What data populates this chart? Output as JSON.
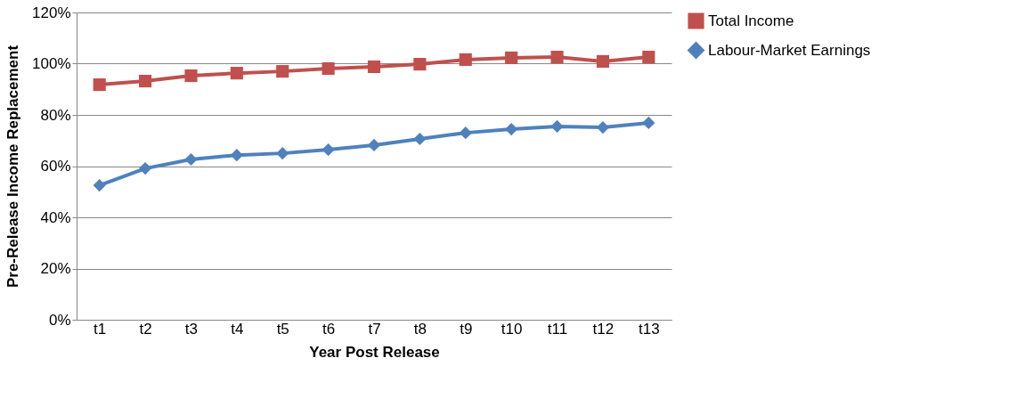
{
  "chart_data": {
    "type": "line",
    "xlabel": "Year Post Release",
    "ylabel": "Pre-Release Income Replacement",
    "categories": [
      "t1",
      "t2",
      "t3",
      "t4",
      "t5",
      "t6",
      "t7",
      "t8",
      "t9",
      "t10",
      "t11",
      "t12",
      "t13"
    ],
    "series": [
      {
        "name": "Total Income",
        "color": "#c0504d",
        "marker": "square",
        "values": [
          91.8,
          93.2,
          95.3,
          96.3,
          97.0,
          98.1,
          98.8,
          99.8,
          101.6,
          102.3,
          102.6,
          100.9,
          102.6
        ]
      },
      {
        "name": "Labour-Market Earnings",
        "color": "#4f81bd",
        "marker": "diamond",
        "values": [
          52.5,
          59.1,
          62.6,
          64.3,
          65.0,
          66.4,
          68.2,
          70.6,
          73.0,
          74.4,
          75.5,
          75.1,
          76.9
        ]
      }
    ],
    "ylim": [
      0,
      120
    ],
    "yticks": [
      {
        "value": 0,
        "label": "0%"
      },
      {
        "value": 20,
        "label": "20%"
      },
      {
        "value": 40,
        "label": "40%"
      },
      {
        "value": 60,
        "label": "60%"
      },
      {
        "value": 80,
        "label": "80%"
      },
      {
        "value": 100,
        "label": "100%"
      },
      {
        "value": 120,
        "label": "120%"
      }
    ],
    "grid": "y",
    "legend": "right",
    "line_style": "solid"
  }
}
